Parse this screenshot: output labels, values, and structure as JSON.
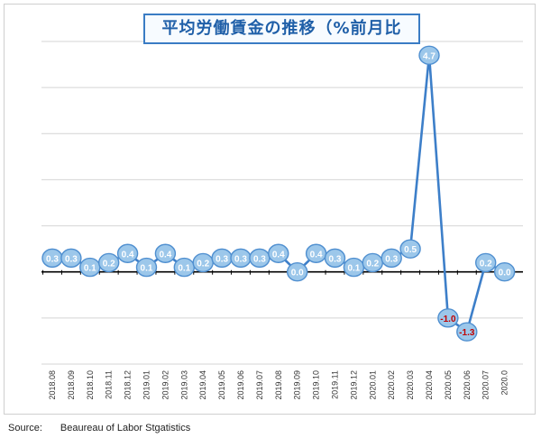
{
  "chart_data": {
    "type": "line",
    "title": "平均労働賃金の推移（%前月比",
    "xlabel": "",
    "ylabel": "",
    "x": [
      "2018.08",
      "2018.09",
      "2018.10",
      "2018.11",
      "2018.12",
      "2019.01",
      "2019.02",
      "2019.03",
      "2019.04",
      "2019.05",
      "2019.06",
      "2019.07",
      "2019.08",
      "2019.09",
      "2019.10",
      "2019.11",
      "2019.12",
      "2020.01",
      "2020.02",
      "2020.03",
      "2020.04",
      "2020.05",
      "2020.06",
      "2020.07",
      "2020.0"
    ],
    "values": [
      0.3,
      0.3,
      0.1,
      0.2,
      0.4,
      0.1,
      0.4,
      0.1,
      0.2,
      0.3,
      0.3,
      0.3,
      0.4,
      0.0,
      0.4,
      0.3,
      0.1,
      0.2,
      0.3,
      0.5,
      4.7,
      -1.0,
      -1.3,
      0.2,
      0.0
    ],
    "data_labels": [
      "0.3",
      "0.3",
      "0.1",
      "0.2",
      "0.4",
      "0.1",
      "0.4",
      "0.1",
      "0.2",
      "0.3",
      "0.3",
      "0.3",
      "0.4",
      "0.0",
      "0.4",
      "0.3",
      "0.1",
      "0.2",
      "0.3",
      "0.5",
      "4.7",
      "-1.0",
      "-1.3",
      "0.2",
      "0.0"
    ],
    "ylim": [
      -2,
      5
    ],
    "grid": true,
    "legend": "none",
    "colors": {
      "line": "#3d7fc9",
      "marker_fill": "#9cc7ea",
      "marker_edge": "#4f8fd0",
      "label_positive": "#ffffff",
      "label_negative": "#c00000",
      "axis": "#000000",
      "grid": "#d4d4d4",
      "title_border": "#3a7cc4",
      "title_text": "#1f5fa8"
    }
  },
  "source": {
    "label": "Source:",
    "text": "Beaureau of Labor Stgatistics"
  }
}
